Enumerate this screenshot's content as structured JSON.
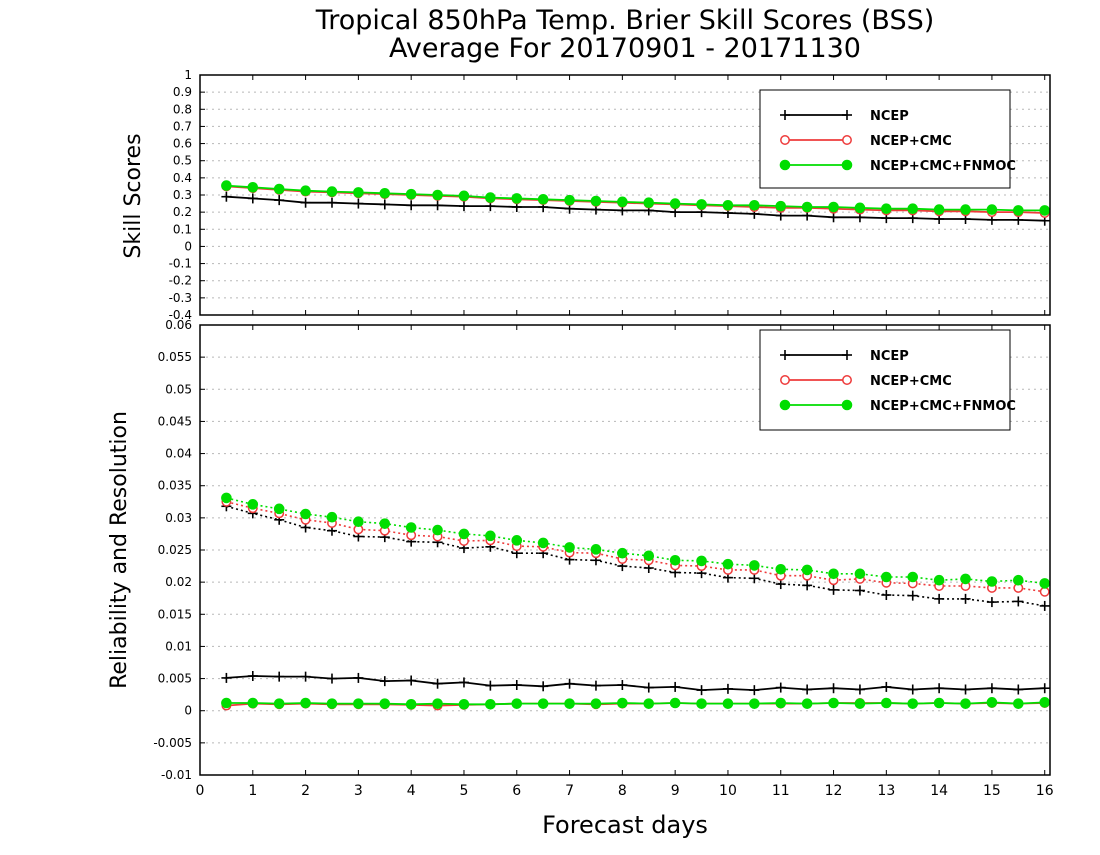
{
  "title": {
    "line1": "Tropical 850hPa Temp. Brier Skill Scores (BSS)",
    "line2": "Average For 20170901 - 20171130"
  },
  "xlabel": "Forecast days",
  "colors": {
    "NCEP": "#000000",
    "NCEP+CMC": "#ee3b3b",
    "NCEP+CMC+FNMOC": "#00dd00"
  },
  "chart_data": [
    {
      "type": "line",
      "ylabel": "Skill Scores",
      "xlim": [
        0,
        16.1
      ],
      "ylim": [
        -0.4,
        1
      ],
      "xticks": [
        "0",
        "1",
        "2",
        "3",
        "4",
        "5",
        "6",
        "7",
        "8",
        "9",
        "10",
        "11",
        "12",
        "13",
        "14",
        "15",
        "16"
      ],
      "yticks": [
        "-0.4",
        "-0.3",
        "-0.2",
        "-0.1",
        "0",
        "0.1",
        "0.2",
        "0.3",
        "0.4",
        "0.5",
        "0.6",
        "0.7",
        "0.8",
        "0.9",
        "1"
      ],
      "grid": true,
      "legend": {
        "position": "top-right",
        "entries": [
          "NCEP",
          "NCEP+CMC",
          "NCEP+CMC+FNMOC"
        ]
      },
      "x": [
        0.5,
        1,
        1.5,
        2,
        2.5,
        3,
        3.5,
        4,
        4.5,
        5,
        5.5,
        6,
        6.5,
        7,
        7.5,
        8,
        8.5,
        9,
        9.5,
        10,
        10.5,
        11,
        11.5,
        12,
        12.5,
        13,
        13.5,
        14,
        14.5,
        15,
        15.5,
        16
      ],
      "series": [
        {
          "name": "NCEP",
          "marker": "plus",
          "line": "solid",
          "values": [
            0.29,
            0.28,
            0.27,
            0.255,
            0.255,
            0.25,
            0.245,
            0.24,
            0.24,
            0.235,
            0.235,
            0.23,
            0.23,
            0.22,
            0.215,
            0.21,
            0.21,
            0.2,
            0.2,
            0.195,
            0.19,
            0.18,
            0.18,
            0.17,
            0.17,
            0.165,
            0.165,
            0.16,
            0.16,
            0.155,
            0.155,
            0.15
          ]
        },
        {
          "name": "NCEP+CMC",
          "marker": "open-circle",
          "line": "solid",
          "values": [
            0.35,
            0.34,
            0.33,
            0.32,
            0.315,
            0.31,
            0.305,
            0.3,
            0.295,
            0.29,
            0.28,
            0.275,
            0.27,
            0.265,
            0.26,
            0.255,
            0.25,
            0.245,
            0.24,
            0.235,
            0.23,
            0.225,
            0.225,
            0.22,
            0.215,
            0.21,
            0.21,
            0.205,
            0.205,
            0.2,
            0.2,
            0.195
          ]
        },
        {
          "name": "NCEP+CMC+FNMOC",
          "marker": "filled-circle",
          "line": "solid",
          "values": [
            0.355,
            0.345,
            0.335,
            0.325,
            0.32,
            0.315,
            0.31,
            0.305,
            0.3,
            0.295,
            0.285,
            0.28,
            0.275,
            0.27,
            0.265,
            0.26,
            0.255,
            0.25,
            0.245,
            0.24,
            0.24,
            0.235,
            0.23,
            0.23,
            0.225,
            0.22,
            0.22,
            0.215,
            0.215,
            0.215,
            0.21,
            0.21
          ]
        }
      ]
    },
    {
      "type": "line",
      "ylabel": "Reliability and Resolution",
      "xlim": [
        0,
        16.1
      ],
      "ylim": [
        -0.01,
        0.06
      ],
      "xticks": [
        "0",
        "1",
        "2",
        "3",
        "4",
        "5",
        "6",
        "7",
        "8",
        "9",
        "10",
        "11",
        "12",
        "13",
        "14",
        "15",
        "16"
      ],
      "yticks": [
        "-0.01",
        "-0.005",
        "0",
        "0.005",
        "0.01",
        "0.015",
        "0.02",
        "0.025",
        "0.03",
        "0.035",
        "0.04",
        "0.045",
        "0.05",
        "0.055",
        "0.06"
      ],
      "grid": true,
      "legend": {
        "position": "top-right",
        "entries": [
          "NCEP",
          "NCEP+CMC",
          "NCEP+CMC+FNMOC"
        ]
      },
      "x": [
        0.5,
        1,
        1.5,
        2,
        2.5,
        3,
        3.5,
        4,
        4.5,
        5,
        5.5,
        6,
        6.5,
        7,
        7.5,
        8,
        8.5,
        9,
        9.5,
        10,
        10.5,
        11,
        11.5,
        12,
        12.5,
        13,
        13.5,
        14,
        14.5,
        15,
        15.5,
        16
      ],
      "series": [
        {
          "name": "NCEP",
          "group": "resolution",
          "marker": "plus",
          "line": "dotted",
          "values": [
            0.0318,
            0.0307,
            0.0297,
            0.0285,
            0.028,
            0.0271,
            0.027,
            0.0263,
            0.0262,
            0.0253,
            0.0255,
            0.0245,
            0.0245,
            0.0235,
            0.0234,
            0.0225,
            0.0222,
            0.0215,
            0.0214,
            0.0207,
            0.0206,
            0.0197,
            0.0195,
            0.0188,
            0.0187,
            0.018,
            0.0179,
            0.0174,
            0.0174,
            0.0169,
            0.017,
            0.0163
          ]
        },
        {
          "name": "NCEP+CMC",
          "group": "resolution",
          "marker": "open-circle",
          "line": "dotted",
          "values": [
            0.0325,
            0.0315,
            0.0307,
            0.0297,
            0.0292,
            0.0282,
            0.028,
            0.0273,
            0.0271,
            0.0264,
            0.0265,
            0.0256,
            0.0255,
            0.0246,
            0.0245,
            0.0236,
            0.0234,
            0.0226,
            0.0225,
            0.0219,
            0.0219,
            0.021,
            0.021,
            0.0203,
            0.0205,
            0.0199,
            0.0198,
            0.0194,
            0.0194,
            0.0191,
            0.0191,
            0.0185
          ]
        },
        {
          "name": "NCEP+CMC+FNMOC",
          "group": "resolution",
          "marker": "filled-circle",
          "line": "dotted",
          "values": [
            0.0331,
            0.0321,
            0.0314,
            0.0306,
            0.0301,
            0.0294,
            0.0291,
            0.0285,
            0.0281,
            0.0275,
            0.0272,
            0.0265,
            0.0261,
            0.0254,
            0.0251,
            0.0245,
            0.0241,
            0.0234,
            0.0233,
            0.0228,
            0.0226,
            0.022,
            0.0219,
            0.0213,
            0.0213,
            0.0208,
            0.0208,
            0.0203,
            0.0205,
            0.0201,
            0.0203,
            0.0198
          ]
        },
        {
          "name": "NCEP",
          "group": "reliability",
          "marker": "plus",
          "line": "solid",
          "values": [
            0.0051,
            0.0054,
            0.0053,
            0.0053,
            0.005,
            0.0051,
            0.0046,
            0.0047,
            0.0042,
            0.0044,
            0.0039,
            0.004,
            0.0038,
            0.0042,
            0.0039,
            0.004,
            0.0036,
            0.0037,
            0.0032,
            0.0034,
            0.0032,
            0.0036,
            0.0033,
            0.0035,
            0.0033,
            0.0037,
            0.0033,
            0.0035,
            0.0033,
            0.0035,
            0.0033,
            0.0035
          ]
        },
        {
          "name": "NCEP+CMC",
          "group": "reliability",
          "marker": "open-circle",
          "line": "solid",
          "values": [
            0.0008,
            0.0011,
            0.001,
            0.0011,
            0.001,
            0.001,
            0.001,
            0.0009,
            0.0008,
            0.0009,
            0.001,
            0.0011,
            0.0011,
            0.0011,
            0.001,
            0.0011,
            0.0011,
            0.0012,
            0.0011,
            0.0011,
            0.0011,
            0.0011,
            0.0011,
            0.0012,
            0.0012,
            0.0012,
            0.0011,
            0.0012,
            0.0011,
            0.0012,
            0.0011,
            0.0012
          ]
        },
        {
          "name": "NCEP+CMC+FNMOC",
          "group": "reliability",
          "marker": "filled-circle",
          "line": "solid",
          "values": [
            0.0012,
            0.0012,
            0.0011,
            0.0012,
            0.0011,
            0.0011,
            0.0011,
            0.001,
            0.0011,
            0.001,
            0.001,
            0.0011,
            0.0011,
            0.0011,
            0.0011,
            0.0012,
            0.0011,
            0.0012,
            0.0011,
            0.0011,
            0.0011,
            0.0012,
            0.0011,
            0.0012,
            0.0011,
            0.0012,
            0.0011,
            0.0012,
            0.0011,
            0.0013,
            0.0011,
            0.0013
          ]
        }
      ]
    }
  ]
}
